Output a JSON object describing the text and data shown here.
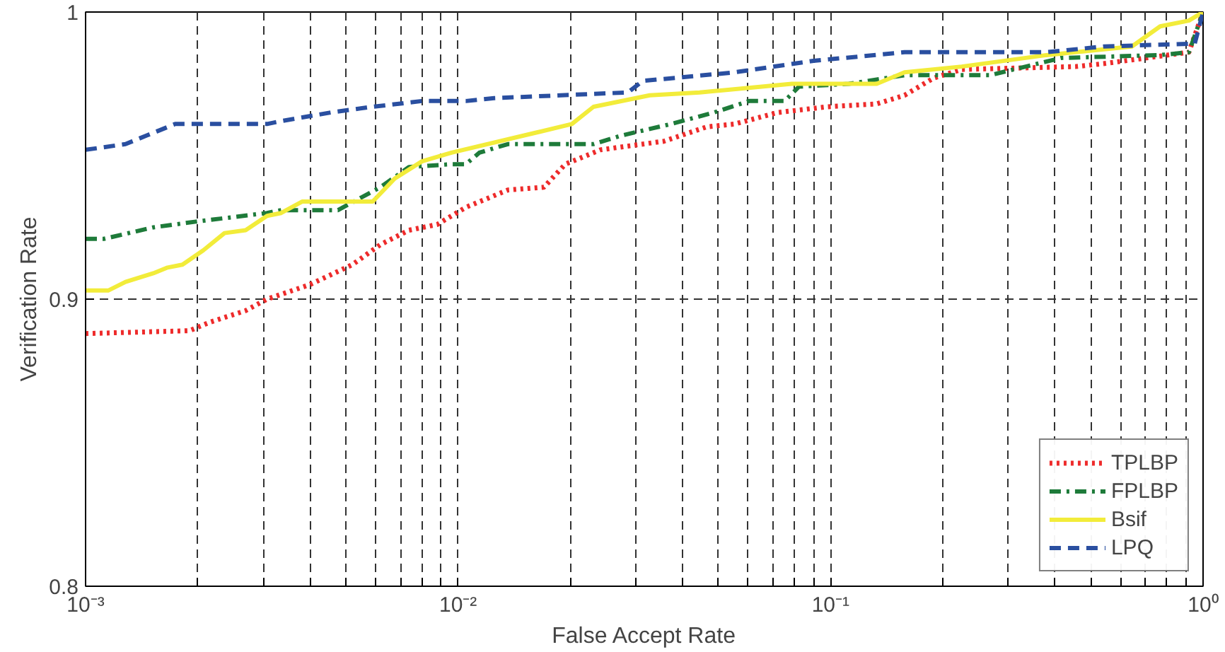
{
  "chart_data": {
    "type": "line",
    "xlabel": "False Accept Rate",
    "ylabel": "Verification Rate",
    "log": "x",
    "xlim": [
      0.001,
      1
    ],
    "ylim": [
      0.8,
      1
    ],
    "xticks": [
      {
        "value": 0.001,
        "label": "10⁻³"
      },
      {
        "value": 0.002,
        "label": null
      },
      {
        "value": 0.003,
        "label": null
      },
      {
        "value": 0.004,
        "label": null
      },
      {
        "value": 0.005,
        "label": null
      },
      {
        "value": 0.006,
        "label": null
      },
      {
        "value": 0.007,
        "label": null
      },
      {
        "value": 0.008,
        "label": null
      },
      {
        "value": 0.009,
        "label": null
      },
      {
        "value": 0.01,
        "label": "10⁻²"
      },
      {
        "value": 0.02,
        "label": null
      },
      {
        "value": 0.03,
        "label": null
      },
      {
        "value": 0.04,
        "label": null
      },
      {
        "value": 0.05,
        "label": null
      },
      {
        "value": 0.06,
        "label": null
      },
      {
        "value": 0.07,
        "label": null
      },
      {
        "value": 0.08,
        "label": null
      },
      {
        "value": 0.09,
        "label": null
      },
      {
        "value": 0.1,
        "label": "10⁻¹"
      },
      {
        "value": 0.2,
        "label": null
      },
      {
        "value": 0.3,
        "label": null
      },
      {
        "value": 0.4,
        "label": null
      },
      {
        "value": 0.5,
        "label": null
      },
      {
        "value": 0.6,
        "label": null
      },
      {
        "value": 0.7,
        "label": null
      },
      {
        "value": 0.8,
        "label": null
      },
      {
        "value": 0.9,
        "label": null
      },
      {
        "value": 1,
        "label": "10⁰"
      }
    ],
    "yticks": [
      0.8,
      0.9,
      {
        "value": 1,
        "label": "1"
      }
    ],
    "grid": true,
    "legend": "bottom right",
    "series": [
      {
        "name": "TPLBP",
        "color": "#ee2b2b",
        "line_style": "dotted",
        "x": [
          0.001,
          0.0019,
          0.00216,
          0.00269,
          0.00307,
          0.00399,
          0.0052,
          0.00619,
          0.00738,
          0.00879,
          0.0105,
          0.0136,
          0.017,
          0.0194,
          0.0241,
          0.0357,
          0.0465,
          0.0553,
          0.0721,
          0.098,
          0.133,
          0.158,
          0.189,
          0.225,
          0.454,
          0.54,
          0.916,
          1
        ],
        "values": [
          0.888,
          0.889,
          0.892,
          0.896,
          0.9,
          0.905,
          0.912,
          0.919,
          0.924,
          0.926,
          0.932,
          0.938,
          0.939,
          0.947,
          0.952,
          0.955,
          0.96,
          0.961,
          0.965,
          0.967,
          0.968,
          0.971,
          0.977,
          0.98,
          0.981,
          0.982,
          0.986,
          1
        ]
      },
      {
        "name": "FPLBP",
        "color": "#1e7b3a",
        "line_style": "dashdot",
        "x": [
          0.001,
          0.00112,
          0.00152,
          0.00198,
          0.00307,
          0.00335,
          0.00476,
          0.00619,
          0.00738,
          0.0096,
          0.0105,
          0.0114,
          0.0136,
          0.0231,
          0.0275,
          0.0373,
          0.0486,
          0.0604,
          0.0753,
          0.0822,
          0.112,
          0.158,
          0.268,
          0.416,
          0.767,
          0.916,
          1
        ],
        "values": [
          0.921,
          0.921,
          0.925,
          0.927,
          0.93,
          0.931,
          0.931,
          0.939,
          0.946,
          0.947,
          0.947,
          0.951,
          0.954,
          0.954,
          0.957,
          0.961,
          0.965,
          0.969,
          0.969,
          0.974,
          0.975,
          0.978,
          0.978,
          0.984,
          0.985,
          0.986,
          1
        ]
      },
      {
        "name": "Bsif",
        "color": "#f2ec3a",
        "line_style": "solid",
        "x": [
          0.001,
          0.00115,
          0.00128,
          0.00152,
          0.00166,
          0.00182,
          0.00207,
          0.00236,
          0.00269,
          0.00307,
          0.00335,
          0.00382,
          0.0059,
          0.00676,
          0.008,
          0.0096,
          0.0162,
          0.0202,
          0.0231,
          0.0327,
          0.0445,
          0.0787,
          0.133,
          0.158,
          0.225,
          0.38,
          0.644,
          0.767,
          0.916,
          1
        ],
        "values": [
          0.903,
          0.903,
          0.906,
          0.909,
          0.911,
          0.912,
          0.917,
          0.923,
          0.924,
          0.929,
          0.93,
          0.934,
          0.934,
          0.942,
          0.948,
          0.951,
          0.958,
          0.961,
          0.967,
          0.971,
          0.972,
          0.975,
          0.975,
          0.979,
          0.981,
          0.985,
          0.988,
          0.995,
          0.997,
          1
        ]
      },
      {
        "name": "LPQ",
        "color": "#2a4fa0",
        "line_style": "dashed",
        "x": [
          0.001,
          0.00128,
          0.00146,
          0.00174,
          0.00307,
          0.00335,
          0.00455,
          0.0059,
          0.008,
          0.0105,
          0.0125,
          0.0286,
          0.0313,
          0.0553,
          0.09,
          0.158,
          0.38,
          0.54,
          0.95,
          1
        ],
        "values": [
          0.952,
          0.954,
          0.957,
          0.961,
          0.961,
          0.962,
          0.965,
          0.967,
          0.969,
          0.969,
          0.97,
          0.972,
          0.976,
          0.979,
          0.983,
          0.986,
          0.986,
          0.988,
          0.989,
          1
        ]
      }
    ]
  }
}
